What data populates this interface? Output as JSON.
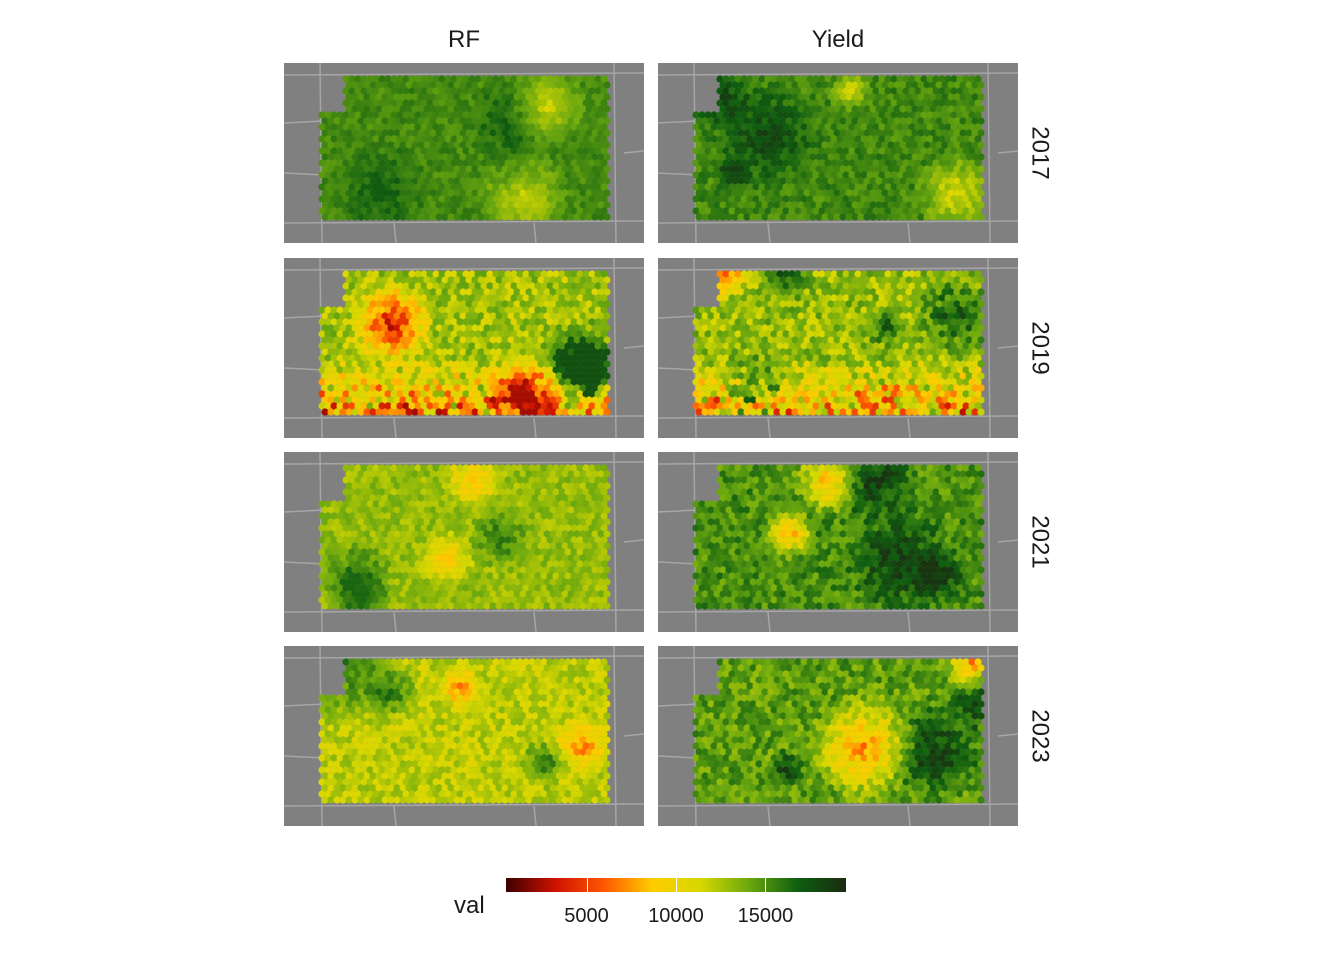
{
  "chart_data": {
    "type": "heatmap",
    "title": "",
    "facet_columns": [
      "RF",
      "Yield"
    ],
    "facet_rows": [
      "2017",
      "2019",
      "2021",
      "2023"
    ],
    "panels": [
      {
        "column": "RF",
        "row": "2017",
        "mean_val": 15200,
        "min_val": 11000,
        "max_val": 17000
      },
      {
        "column": "Yield",
        "row": "2017",
        "mean_val": 15300,
        "min_val": 10500,
        "max_val": 18500
      },
      {
        "column": "RF",
        "row": "2019",
        "mean_val": 12500,
        "min_val": 2500,
        "max_val": 17500
      },
      {
        "column": "Yield",
        "row": "2019",
        "mean_val": 13000,
        "min_val": 3000,
        "max_val": 18000
      },
      {
        "column": "RF",
        "row": "2021",
        "mean_val": 13000,
        "min_val": 8000,
        "max_val": 16500
      },
      {
        "column": "Yield",
        "row": "2021",
        "mean_val": 15000,
        "min_val": 7000,
        "max_val": 19000
      },
      {
        "column": "RF",
        "row": "2023",
        "mean_val": 12000,
        "min_val": 6000,
        "max_val": 16500
      },
      {
        "column": "Yield",
        "row": "2023",
        "mean_val": 14500,
        "min_val": 6000,
        "max_val": 19000
      }
    ],
    "legend": {
      "title": "val",
      "ticks": [
        "5000",
        "10000",
        "15000"
      ],
      "tick_values": [
        5000,
        10000,
        15000
      ],
      "range": [
        500,
        19500
      ],
      "placement": "bottom",
      "colors": [
        "#3d0000",
        "#cc1100",
        "#ff5500",
        "#ffcc00",
        "#d8d800",
        "#6aa80e",
        "#0f5e10",
        "#1a2a10"
      ]
    }
  }
}
